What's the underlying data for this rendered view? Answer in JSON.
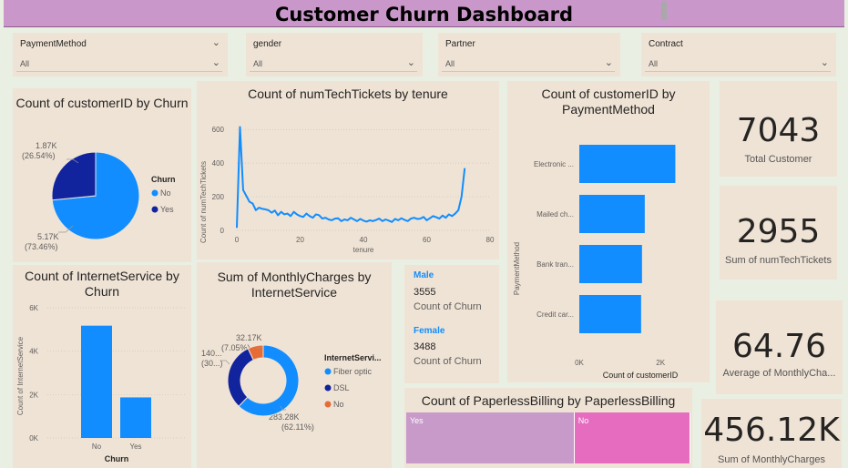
{
  "header": {
    "title": "Customer Churn Dashboard"
  },
  "slicers": [
    {
      "label": "PaymentMethod",
      "value": "All"
    },
    {
      "label": "gender",
      "value": "All"
    },
    {
      "label": "Partner",
      "value": "All"
    },
    {
      "label": "Contract",
      "value": "All"
    }
  ],
  "churn_pie": {
    "title": "Count of customerID by Churn",
    "legend_title": "Churn",
    "slices": [
      {
        "label": "No",
        "value": 5170,
        "display": "5.17K",
        "pct": "(73.46%)",
        "color": "#118dff"
      },
      {
        "label": "Yes",
        "value": 1870,
        "display": "1.87K",
        "pct": "(26.54%)",
        "color": "#12239e"
      }
    ]
  },
  "tickets_line": {
    "title": "Count of numTechTickets by tenure",
    "xlabel": "tenure",
    "ylabel": "Count of numTechTickets",
    "x_ticks": [
      "0",
      "20",
      "40",
      "60",
      "80"
    ],
    "y_ticks": [
      "0",
      "200",
      "400",
      "600"
    ],
    "color": "#118dff"
  },
  "payment_bar": {
    "title": "Count of customerID by PaymentMethod",
    "ylabel": "PaymentMethod",
    "xlabel": "Count of customerID",
    "x_ticks": [
      "0K",
      "2K"
    ],
    "color": "#118dff"
  },
  "kpis": [
    {
      "value": "7043",
      "label": "Total Customer"
    },
    {
      "value": "2955",
      "label": "Sum of numTechTickets"
    },
    {
      "value": "64.76",
      "label": "Average of MonthlyCha..."
    },
    {
      "value": "456.12K",
      "label": "Sum of MonthlyCharges"
    }
  ],
  "internet_bar": {
    "title": "Count of InternetService by Churn",
    "xlabel": "Churn",
    "ylabel": "Count of InternetService",
    "y_ticks": [
      "0K",
      "2K",
      "4K",
      "6K"
    ],
    "color": "#118dff"
  },
  "charges_donut": {
    "title": "Sum of MonthlyCharges by InternetService",
    "legend_title": "InternetServi...",
    "slices": [
      {
        "label": "Fiber optic",
        "value": 283.28,
        "display": "283.28K",
        "pct": "(62.11%)",
        "color": "#118dff"
      },
      {
        "label": "DSL",
        "value": 140.6,
        "display": "140...",
        "pct": "(30...)",
        "color": "#12239e"
      },
      {
        "label": "No",
        "value": 32.17,
        "display": "32.17K",
        "pct": "(7.05%)",
        "color": "#e66c37"
      }
    ]
  },
  "gender_card": {
    "male": {
      "label": "Male",
      "value": "3555",
      "caption": "Count of Churn"
    },
    "female": {
      "label": "Female",
      "value": "3488",
      "caption": "Count of Churn"
    }
  },
  "paperless": {
    "title": "Count of PaperlessBilling by PaperlessBilling",
    "items": [
      {
        "label": "Yes",
        "value": 4171,
        "color": "#c79ac9"
      },
      {
        "label": "No",
        "value": 2872,
        "color": "#e66cbf"
      }
    ]
  },
  "chart_data": [
    {
      "type": "pie",
      "title": "Count of customerID by Churn",
      "categories": [
        "No",
        "Yes"
      ],
      "values": [
        5170,
        1870
      ],
      "legend": "right"
    },
    {
      "type": "line",
      "title": "Count of numTechTickets by tenure",
      "xlabel": "tenure",
      "ylabel": "Count of numTechTickets",
      "xlim": [
        0,
        80
      ],
      "ylim": [
        0,
        650
      ],
      "x": [
        0,
        1,
        2,
        3,
        4,
        5,
        6,
        7,
        8,
        9,
        10,
        11,
        12,
        13,
        14,
        15,
        16,
        17,
        18,
        19,
        20,
        21,
        22,
        23,
        24,
        25,
        26,
        27,
        28,
        29,
        30,
        31,
        32,
        33,
        34,
        35,
        36,
        37,
        38,
        39,
        40,
        41,
        42,
        43,
        44,
        45,
        46,
        47,
        48,
        49,
        50,
        51,
        52,
        53,
        54,
        55,
        56,
        57,
        58,
        59,
        60,
        61,
        62,
        63,
        64,
        65,
        66,
        67,
        68,
        69,
        70,
        71,
        72
      ],
      "y": [
        15,
        615,
        240,
        205,
        170,
        160,
        120,
        135,
        128,
        125,
        120,
        105,
        118,
        90,
        110,
        95,
        100,
        85,
        110,
        95,
        85,
        80,
        100,
        85,
        75,
        95,
        90,
        70,
        75,
        65,
        60,
        70,
        72,
        55,
        65,
        60,
        75,
        65,
        55,
        68,
        58,
        52,
        60,
        55,
        62,
        70,
        55,
        65,
        58,
        50,
        68,
        60,
        72,
        62,
        55,
        70,
        75,
        68,
        70,
        80,
        60,
        72,
        85,
        78,
        70,
        88,
        75,
        95,
        85,
        100,
        120,
        200,
        370
      ],
      "grid": true
    },
    {
      "type": "bar",
      "orientation": "horizontal",
      "title": "Count of customerID by PaymentMethod",
      "xlabel": "Count of customerID",
      "ylabel": "PaymentMethod",
      "categories": [
        "Electronic ...",
        "Mailed ch...",
        "Bank tran...",
        "Credit car..."
      ],
      "values": [
        2365,
        1612,
        1544,
        1522
      ],
      "xlim": [
        0,
        2400
      ]
    },
    {
      "type": "bar",
      "title": "Count of InternetService by Churn",
      "xlabel": "Churn",
      "ylabel": "Count of InternetService",
      "categories": [
        "No",
        "Yes"
      ],
      "values": [
        5174,
        1869
      ],
      "ylim": [
        0,
        6000
      ],
      "grid": true
    },
    {
      "type": "pie",
      "subtype": "donut",
      "title": "Sum of MonthlyCharges by InternetService",
      "categories": [
        "Fiber optic",
        "DSL",
        "No"
      ],
      "values": [
        283.28,
        140.6,
        32.17
      ],
      "legend": "right"
    }
  ]
}
